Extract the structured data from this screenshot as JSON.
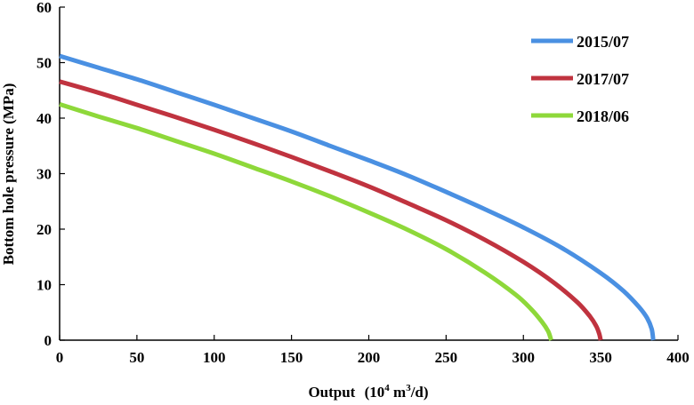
{
  "chart_data": {
    "type": "line",
    "title": "",
    "xlabel": "Output",
    "xlabel_unit_prefix": "(10",
    "xlabel_unit_exp1": "4",
    "xlabel_unit_mid": " m",
    "xlabel_unit_exp2": "3",
    "xlabel_unit_suffix": "/d)",
    "ylabel": "Bottom hole pressure (MPa)",
    "xlim": [
      0,
      400
    ],
    "ylim": [
      0,
      60
    ],
    "xticks": [
      0,
      50,
      100,
      150,
      200,
      250,
      300,
      350,
      400
    ],
    "yticks": [
      0,
      10,
      20,
      30,
      40,
      50,
      60
    ],
    "grid": false,
    "legend_position": "top-right",
    "series": [
      {
        "name": "2015/07",
        "color": "#4a90e2",
        "x": [
          0,
          25,
          50,
          75,
          100,
          125,
          150,
          175,
          200,
          225,
          250,
          275,
          300,
          325,
          350,
          365,
          375,
          380,
          383,
          384
        ],
        "y": [
          51.2,
          49.1,
          47.0,
          44.7,
          42.4,
          40.0,
          37.6,
          35.0,
          32.4,
          29.7,
          26.7,
          23.6,
          20.3,
          16.6,
          12.1,
          8.8,
          5.9,
          4.0,
          2.0,
          0
        ]
      },
      {
        "name": "2017/07",
        "color": "#c0333f",
        "x": [
          0,
          25,
          50,
          75,
          100,
          125,
          150,
          175,
          200,
          225,
          250,
          275,
          300,
          320,
          335,
          343,
          347,
          349,
          350
        ],
        "y": [
          46.6,
          44.6,
          42.4,
          40.2,
          37.9,
          35.5,
          33.0,
          30.4,
          27.7,
          24.7,
          21.6,
          18.1,
          14.1,
          10.3,
          6.8,
          4.3,
          2.6,
          1.2,
          0
        ]
      },
      {
        "name": "2018/06",
        "color": "#8ed83a",
        "x": [
          0,
          25,
          50,
          75,
          100,
          125,
          150,
          175,
          200,
          225,
          250,
          275,
          295,
          305,
          312,
          316,
          318
        ],
        "y": [
          42.5,
          40.3,
          38.2,
          35.9,
          33.6,
          31.1,
          28.6,
          25.9,
          23.0,
          19.9,
          16.4,
          12.2,
          8.2,
          5.6,
          3.3,
          1.6,
          0
        ]
      }
    ]
  }
}
